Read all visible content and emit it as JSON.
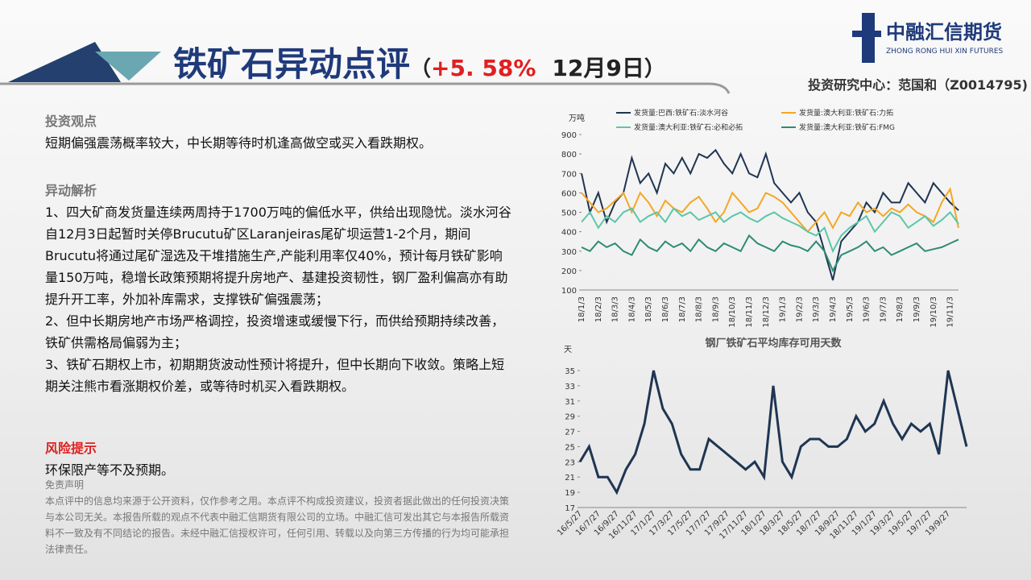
{
  "header": {
    "title": "铁矿石异动点评",
    "paren_open": "（",
    "change": "+5. 58%",
    "date": "12月9日",
    "paren_close": "）",
    "author": "投资研究中心：范国和（Z0014795)"
  },
  "logo": {
    "name": "中融汇信期货",
    "name_en": "ZHONG RONG HUI XIN FUTURES"
  },
  "sections": {
    "view_title": "投资观点",
    "view_text": "短期偏强震荡概率较大，中长期等待时机逢高做空或买入看跌期权。",
    "analysis_title": "异动解析",
    "analysis": [
      "1、四大矿商发货量连续两周持于1700万吨的偏低水平，供给出现隐忧。淡水河谷自12月3日起暂时关停Brucutu矿区Laranjeiras尾矿坝运营1-2个月，期间Brucutu将通过尾矿湿选及干堆措施生产,产能利用率仅40%，预计每月铁矿影响量150万吨，稳增长政策预期将提升房地产、基建投资韧性，钢厂盈利偏高亦有助提升开工率，外加补库需求，支撑铁矿偏强震荡；",
      "2、但中长期房地产市场严格调控，投资增速或缓慢下行，而供给预期持续改善，铁矿供需格局偏弱为主；",
      "3、铁矿石期权上市，初期期货波动性预计将提升，但中长期向下收敛。策略上短期关注熊市看涨期权价差，或等待时机买入看跌期权。"
    ],
    "risk_title": "风险提示",
    "risk_text": "环保限产等不及预期。",
    "disclaimer_title": "免责声明",
    "disclaimer_text": "本点评中的信息均来源于公开资料，仅作参考之用。本点评不构成投资建议，投资者据此做出的任何投资决策与本公司无关。本报告所载的观点不代表中融汇信期货有限公司的立场。中融汇信可发出其它与本报告所载资料不一致及有不同结论的报告。未经中融汇信授权许可，任何引用、转载以及向第三方传播的行为均可能承担法律责任。"
  },
  "chart_data": [
    {
      "type": "line",
      "y_unit": "万吨",
      "grid": false,
      "categories": [
        "18/1/3",
        null,
        "18/2/3",
        null,
        "18/3/3",
        null,
        "18/4/3",
        null,
        "18/5/3",
        null,
        "18/6/3",
        null,
        "18/7/3",
        null,
        "18/8/3",
        null,
        "18/9/3",
        null,
        "18/10/3",
        null,
        "18/11/3",
        null,
        "18/12/3",
        null,
        "19/1/3",
        null,
        "19/2/3",
        null,
        "19/3/3",
        null,
        "19/4/3",
        null,
        "19/5/3",
        null,
        "19/6/3",
        null,
        "19/7/3",
        null,
        "19/8/3",
        null,
        "19/9/3",
        null,
        "19/10/3",
        null,
        "19/11/3",
        null
      ],
      "ylim": [
        100,
        900
      ],
      "yticks": [
        100,
        200,
        300,
        400,
        500,
        600,
        700,
        800,
        900
      ],
      "series": [
        {
          "name": "发货量:巴西:铁矿石:淡水河谷",
          "color": "#1f3552",
          "values": [
            700,
            500,
            600,
            450,
            550,
            600,
            780,
            650,
            700,
            600,
            750,
            700,
            780,
            700,
            800,
            780,
            820,
            750,
            700,
            800,
            700,
            680,
            800,
            650,
            600,
            550,
            600,
            500,
            450,
            300,
            150,
            350,
            400,
            450,
            550,
            500,
            600,
            550,
            550,
            650,
            600,
            550,
            650,
            600,
            550,
            510
          ]
        },
        {
          "name": "发货量:澳大利亚:铁矿石:力拓",
          "color": "#f5a623",
          "values": [
            600,
            550,
            500,
            520,
            560,
            600,
            500,
            600,
            550,
            480,
            560,
            520,
            500,
            550,
            580,
            520,
            450,
            500,
            600,
            550,
            500,
            520,
            600,
            580,
            550,
            500,
            450,
            400,
            450,
            500,
            420,
            500,
            480,
            550,
            500,
            520,
            480,
            520,
            500,
            540,
            500,
            480,
            450,
            550,
            620,
            420
          ]
        },
        {
          "name": "发货量:澳大利亚:铁矿石:必和必拓",
          "color": "#5cc6a8",
          "values": [
            450,
            500,
            420,
            480,
            450,
            500,
            520,
            450,
            480,
            500,
            450,
            520,
            480,
            500,
            460,
            480,
            500,
            450,
            480,
            500,
            470,
            450,
            480,
            500,
            470,
            450,
            430,
            400,
            380,
            420,
            300,
            380,
            420,
            450,
            480,
            400,
            450,
            500,
            480,
            420,
            450,
            480,
            430,
            460,
            500,
            440
          ]
        },
        {
          "name": "发货量:澳大利亚:铁矿石:FMG",
          "color": "#2e8b74",
          "values": [
            320,
            300,
            350,
            320,
            340,
            300,
            280,
            360,
            320,
            300,
            350,
            320,
            340,
            300,
            360,
            320,
            300,
            340,
            320,
            300,
            380,
            340,
            320,
            300,
            350,
            330,
            320,
            300,
            350,
            300,
            200,
            280,
            300,
            320,
            350,
            300,
            320,
            280,
            300,
            320,
            340,
            300,
            310,
            320,
            340,
            360
          ]
        }
      ]
    },
    {
      "type": "line",
      "title": "钢厂铁矿石平均库存可用天数",
      "y_unit": "天",
      "grid": false,
      "categories": [
        "16/5/27",
        null,
        "16/7/27",
        null,
        "16/9/27",
        null,
        "16/11/27",
        null,
        "17/1/27",
        null,
        "17/3/27",
        null,
        "17/5/27",
        null,
        "17/7/27",
        null,
        "17/9/27",
        null,
        "17/11/27",
        null,
        "18/1/27",
        null,
        "18/3/27",
        null,
        "18/5/27",
        null,
        "18/7/27",
        null,
        "18/9/27",
        null,
        "18/11/27",
        null,
        "19/1/27",
        null,
        "19/3/27",
        null,
        "19/5/27",
        null,
        "19/7/27",
        null,
        "19/9/27",
        null,
        null
      ],
      "ylim": [
        17,
        35
      ],
      "yticks": [
        17,
        19,
        21,
        23,
        25,
        27,
        29,
        31,
        33,
        35
      ],
      "series": [
        {
          "color": "#1f3552",
          "values": [
            23,
            25,
            21,
            21,
            19,
            22,
            24,
            28,
            35,
            30,
            28,
            24,
            22,
            22,
            26,
            25,
            24,
            23,
            22,
            23,
            21,
            33,
            23,
            21,
            25,
            26,
            26,
            25,
            25,
            26,
            29,
            27,
            28,
            31,
            28,
            26,
            28,
            27,
            28,
            24,
            35,
            30,
            25
          ]
        }
      ]
    }
  ]
}
